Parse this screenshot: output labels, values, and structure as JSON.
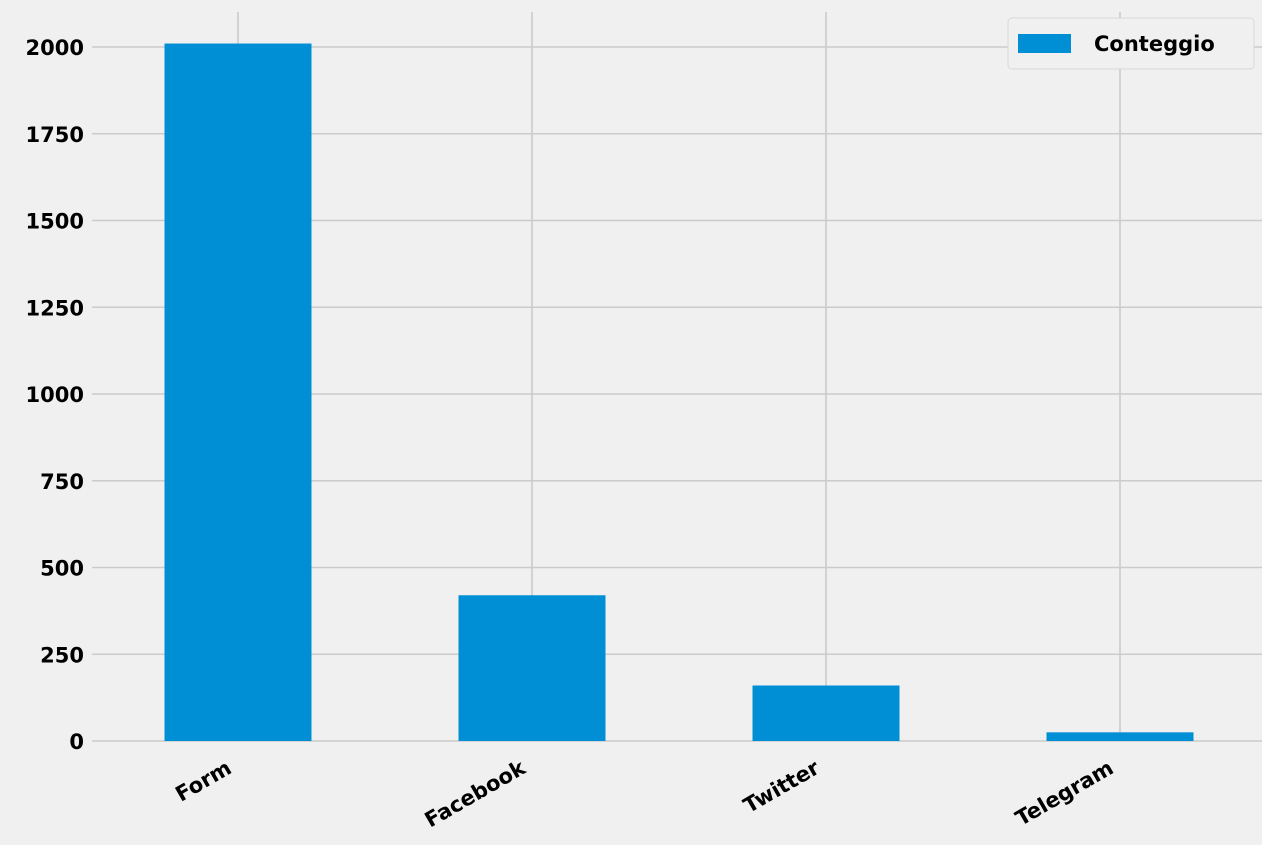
{
  "chart_data": {
    "type": "bar",
    "categories": [
      "Form",
      "Facebook",
      "Twitter",
      "Telegram"
    ],
    "series": [
      {
        "name": "Conteggio",
        "values": [
          2010,
          420,
          160,
          25
        ]
      }
    ],
    "ylim": [
      0,
      2100
    ],
    "yticks": [
      0,
      250,
      500,
      750,
      1000,
      1250,
      1500,
      1750,
      2000
    ],
    "grid": true,
    "legend_position": "top-right",
    "colors": {
      "bar": "#008fd5",
      "background": "#f0f0f0",
      "grid": "#cbcbcb"
    }
  }
}
